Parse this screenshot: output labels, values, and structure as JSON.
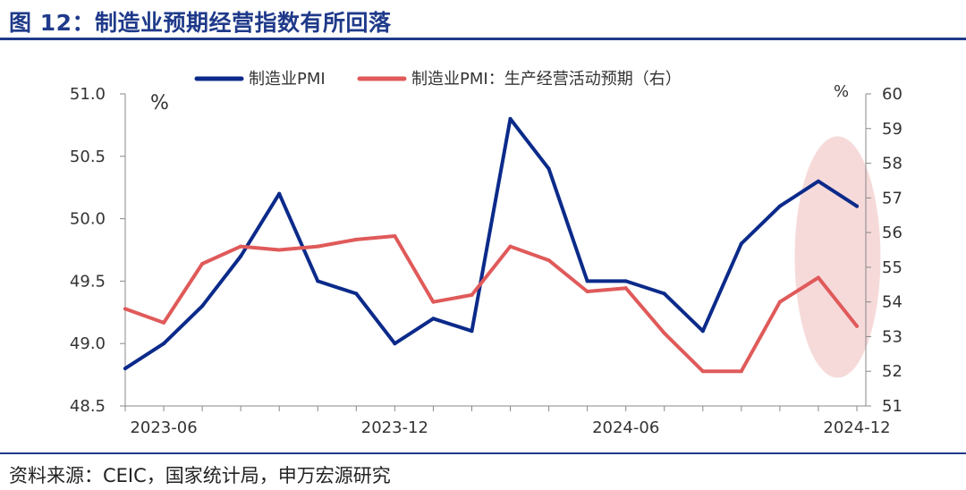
{
  "title": "图 12：制造业预期经营指数有所回落",
  "source": "资料来源：CEIC，国家统计局，申万宏源研究",
  "colors": {
    "navy": "#0b2a8a",
    "red": "#e05a5a",
    "highlight": "#f5d3d3",
    "title": "#1f3a8a"
  },
  "chart_data": {
    "type": "line",
    "x_labels_shown": [
      "2023-06",
      "2023-12",
      "2024-06",
      "2024-12"
    ],
    "x": [
      "2023-05",
      "2023-06",
      "2023-07",
      "2023-08",
      "2023-09",
      "2023-10",
      "2023-11",
      "2023-12",
      "2024-01",
      "2024-02",
      "2024-03",
      "2024-04",
      "2024-05",
      "2024-06",
      "2024-07",
      "2024-08",
      "2024-09",
      "2024-10",
      "2024-11",
      "2024-12"
    ],
    "left_axis": {
      "unit": "%",
      "ylim": [
        48.5,
        51.0
      ],
      "ticks": [
        "48.5",
        "49.0",
        "49.5",
        "50.0",
        "50.5",
        "51.0"
      ]
    },
    "right_axis": {
      "unit": "%",
      "ylim": [
        51,
        60
      ],
      "ticks": [
        "51",
        "52",
        "53",
        "54",
        "55",
        "56",
        "57",
        "58",
        "59",
        "60"
      ]
    },
    "series": [
      {
        "name": "制造业PMI",
        "axis": "left",
        "color": "#0b2a8a",
        "values": [
          48.8,
          49.0,
          49.3,
          49.7,
          50.2,
          49.5,
          49.4,
          49.0,
          49.2,
          49.1,
          50.8,
          50.4,
          49.5,
          49.5,
          49.4,
          49.1,
          49.8,
          50.1,
          50.3,
          50.1
        ]
      },
      {
        "name": "制造业PMI：生产经营活动预期（右）",
        "axis": "right",
        "color": "#e05a5a",
        "values": [
          53.8,
          53.4,
          55.1,
          55.6,
          55.5,
          55.6,
          55.8,
          55.9,
          54.0,
          54.2,
          55.6,
          55.2,
          54.3,
          54.4,
          53.1,
          52.0,
          52.0,
          54.0,
          54.7,
          53.3
        ]
      }
    ],
    "highlight": {
      "from": "2024-11",
      "to": "2024-12"
    },
    "legend_position": "top"
  }
}
